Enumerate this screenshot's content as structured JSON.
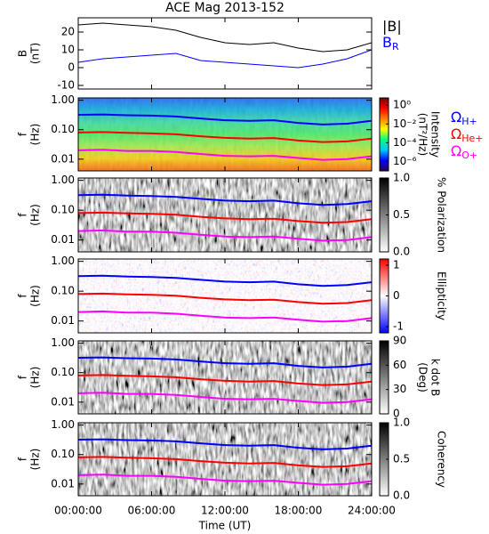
{
  "chart_data": [
    {
      "type": "line",
      "title": "ACE Mag 2013-152",
      "ylabel": "B",
      "ylabel_unit": "(nT)",
      "x": [
        0,
        2,
        4,
        6,
        8,
        10,
        12,
        14,
        16,
        18,
        20,
        22,
        24
      ],
      "ylim": [
        -12,
        28
      ],
      "yticks": [
        -10,
        0,
        10,
        20
      ],
      "series": [
        {
          "name": "|B|",
          "color": "#000000",
          "values": [
            24,
            25,
            24,
            23,
            21,
            17,
            14,
            13,
            14,
            11,
            9,
            10,
            14
          ]
        },
        {
          "name": "B",
          "subscript": "R",
          "color": "#0000ff",
          "values": [
            3,
            5,
            6,
            7,
            8,
            4,
            3,
            2,
            1,
            0,
            2,
            5,
            10
          ]
        }
      ]
    },
    {
      "type": "spectrogram",
      "ylabel": "f",
      "ylabel_unit": "(Hz)",
      "log": true,
      "ylim": [
        0.004,
        1.2
      ],
      "yticks": [
        {
          "value": 1,
          "label": "1.00"
        },
        {
          "value": 0.1,
          "label": "0.10"
        },
        {
          "value": 0.01,
          "label": "0.01"
        }
      ],
      "colorbar_label": "Intensity",
      "colorbar_unit": "(nT²/Hz)",
      "clog": true,
      "clim": [
        1e-07,
        6
      ],
      "cticks": [
        {
          "value": 1,
          "label": "10⁰"
        },
        {
          "value": 0.01,
          "label": "10⁻²"
        },
        {
          "value": 0.0001,
          "label": "10⁻⁴"
        },
        {
          "value": 1e-06,
          "label": "10⁻⁶"
        }
      ],
      "colormap": [
        "#2a0050",
        "#0000ff",
        "#00c8ff",
        "#00ff80",
        "#ffff00",
        "#ff8000",
        "#ff0000",
        "#7a0000"
      ],
      "x": [
        0,
        2,
        4,
        6,
        8,
        10,
        12,
        14,
        16,
        18,
        20,
        22,
        24
      ],
      "series": [
        {
          "name": "Ω",
          "subscript": "H+",
          "color": "#0000ff",
          "values": [
            0.32,
            0.33,
            0.31,
            0.3,
            0.28,
            0.24,
            0.21,
            0.2,
            0.21,
            0.17,
            0.15,
            0.16,
            0.2
          ]
        },
        {
          "name": "Ω",
          "subscript": "He+",
          "color": "#ff0000",
          "values": [
            0.08,
            0.083,
            0.078,
            0.075,
            0.07,
            0.06,
            0.053,
            0.05,
            0.052,
            0.043,
            0.038,
            0.04,
            0.05
          ]
        },
        {
          "name": "Ω",
          "subscript": "O+",
          "color": "#ff00ff",
          "values": [
            0.02,
            0.021,
            0.019,
            0.019,
            0.0175,
            0.015,
            0.013,
            0.0125,
            0.013,
            0.011,
            0.0095,
            0.01,
            0.0125
          ]
        }
      ]
    },
    {
      "type": "spectrogram",
      "ylabel": "f",
      "ylabel_unit": "(Hz)",
      "log": true,
      "ylim": [
        0.004,
        1.2
      ],
      "yticks": [
        {
          "value": 1,
          "label": "1.00"
        },
        {
          "value": 0.1,
          "label": "0.10"
        },
        {
          "value": 0.01,
          "label": "0.01"
        }
      ],
      "colorbar_label": "% Polarization",
      "clim": [
        0,
        1
      ],
      "cticks": [
        {
          "value": 1,
          "label": "1.0"
        },
        {
          "value": 0.5,
          "label": "0.5"
        },
        {
          "value": 0,
          "label": "0.0"
        }
      ],
      "colormap": [
        "#ffffff",
        "#000000"
      ],
      "x": [
        0,
        2,
        4,
        6,
        8,
        10,
        12,
        14,
        16,
        18,
        20,
        22,
        24
      ],
      "series": [
        {
          "color": "#0000ff",
          "values": [
            0.32,
            0.33,
            0.31,
            0.3,
            0.28,
            0.24,
            0.21,
            0.2,
            0.21,
            0.17,
            0.15,
            0.16,
            0.2
          ]
        },
        {
          "color": "#ff0000",
          "values": [
            0.08,
            0.083,
            0.078,
            0.075,
            0.07,
            0.06,
            0.053,
            0.05,
            0.052,
            0.043,
            0.038,
            0.04,
            0.05
          ]
        },
        {
          "color": "#ff00ff",
          "values": [
            0.02,
            0.021,
            0.019,
            0.019,
            0.0175,
            0.015,
            0.013,
            0.0125,
            0.013,
            0.011,
            0.0095,
            0.01,
            0.0125
          ]
        }
      ]
    },
    {
      "type": "spectrogram",
      "ylabel": "f",
      "ylabel_unit": "(Hz)",
      "log": true,
      "ylim": [
        0.004,
        1.2
      ],
      "yticks": [
        {
          "value": 1,
          "label": "1.00"
        },
        {
          "value": 0.1,
          "label": "0.10"
        },
        {
          "value": 0.01,
          "label": "0.01"
        }
      ],
      "colorbar_label": "Ellipticity",
      "clim": [
        -1.2,
        1.2
      ],
      "cticks": [
        1,
        0,
        -1
      ],
      "colormap": [
        "#0000ff",
        "#ffffff",
        "#ff0000"
      ],
      "x": [
        0,
        2,
        4,
        6,
        8,
        10,
        12,
        14,
        16,
        18,
        20,
        22,
        24
      ],
      "series": [
        {
          "color": "#0000ff",
          "values": [
            0.32,
            0.33,
            0.31,
            0.3,
            0.28,
            0.24,
            0.21,
            0.2,
            0.21,
            0.17,
            0.15,
            0.16,
            0.2
          ]
        },
        {
          "color": "#ff0000",
          "values": [
            0.08,
            0.083,
            0.078,
            0.075,
            0.07,
            0.06,
            0.053,
            0.05,
            0.052,
            0.043,
            0.038,
            0.04,
            0.05
          ]
        },
        {
          "color": "#ff00ff",
          "values": [
            0.02,
            0.021,
            0.019,
            0.019,
            0.0175,
            0.015,
            0.013,
            0.0125,
            0.013,
            0.011,
            0.0095,
            0.01,
            0.0125
          ]
        }
      ]
    },
    {
      "type": "spectrogram",
      "ylabel": "f",
      "ylabel_unit": "(Hz)",
      "log": true,
      "ylim": [
        0.004,
        1.2
      ],
      "yticks": [
        {
          "value": 1,
          "label": "1.00"
        },
        {
          "value": 0.1,
          "label": "0.10"
        },
        {
          "value": 0.01,
          "label": "0.01"
        }
      ],
      "colorbar_label": "k dot B",
      "colorbar_unit": "(Deg)",
      "clim": [
        0,
        90
      ],
      "cticks": [
        90,
        60,
        30,
        0
      ],
      "colormap": [
        "#ffffff",
        "#000000"
      ],
      "x": [
        0,
        2,
        4,
        6,
        8,
        10,
        12,
        14,
        16,
        18,
        20,
        22,
        24
      ],
      "series": [
        {
          "color": "#0000ff",
          "values": [
            0.32,
            0.33,
            0.31,
            0.3,
            0.28,
            0.24,
            0.21,
            0.2,
            0.21,
            0.17,
            0.15,
            0.16,
            0.2
          ]
        },
        {
          "color": "#ff0000",
          "values": [
            0.08,
            0.083,
            0.078,
            0.075,
            0.07,
            0.06,
            0.053,
            0.05,
            0.052,
            0.043,
            0.038,
            0.04,
            0.05
          ]
        },
        {
          "color": "#ff00ff",
          "values": [
            0.02,
            0.021,
            0.019,
            0.019,
            0.0175,
            0.015,
            0.013,
            0.0125,
            0.013,
            0.011,
            0.0095,
            0.01,
            0.0125
          ]
        }
      ]
    },
    {
      "type": "spectrogram",
      "ylabel": "f",
      "ylabel_unit": "(Hz)",
      "log": true,
      "ylim": [
        0.004,
        1.2
      ],
      "yticks": [
        {
          "value": 1,
          "label": "1.00"
        },
        {
          "value": 0.1,
          "label": "0.10"
        },
        {
          "value": 0.01,
          "label": "0.01"
        }
      ],
      "colorbar_label": "Coherency",
      "clim": [
        0,
        1
      ],
      "cticks": [
        {
          "value": 1,
          "label": "1.0"
        },
        {
          "value": 0.5,
          "label": "0.5"
        },
        {
          "value": 0,
          "label": "0.0"
        }
      ],
      "colormap": [
        "#ffffff",
        "#000000"
      ],
      "x": [
        0,
        2,
        4,
        6,
        8,
        10,
        12,
        14,
        16,
        18,
        20,
        22,
        24
      ],
      "series": [
        {
          "color": "#0000ff",
          "values": [
            0.32,
            0.33,
            0.31,
            0.3,
            0.28,
            0.24,
            0.21,
            0.2,
            0.21,
            0.17,
            0.15,
            0.16,
            0.2
          ]
        },
        {
          "color": "#ff0000",
          "values": [
            0.08,
            0.083,
            0.078,
            0.075,
            0.07,
            0.06,
            0.053,
            0.05,
            0.052,
            0.043,
            0.038,
            0.04,
            0.05
          ]
        },
        {
          "color": "#ff00ff",
          "values": [
            0.02,
            0.021,
            0.019,
            0.019,
            0.0175,
            0.015,
            0.013,
            0.0125,
            0.013,
            0.011,
            0.0095,
            0.01,
            0.0125
          ]
        }
      ],
      "xlabel": "Time (UT)",
      "xlim": [
        0,
        24
      ],
      "xticks": [
        {
          "value": 0,
          "label": "00:00:00"
        },
        {
          "value": 6,
          "label": "06:00:00"
        },
        {
          "value": 12,
          "label": "12:00:00"
        },
        {
          "value": 18,
          "label": "18:00:00"
        },
        {
          "value": 24,
          "label": "24:00:00"
        }
      ]
    }
  ]
}
